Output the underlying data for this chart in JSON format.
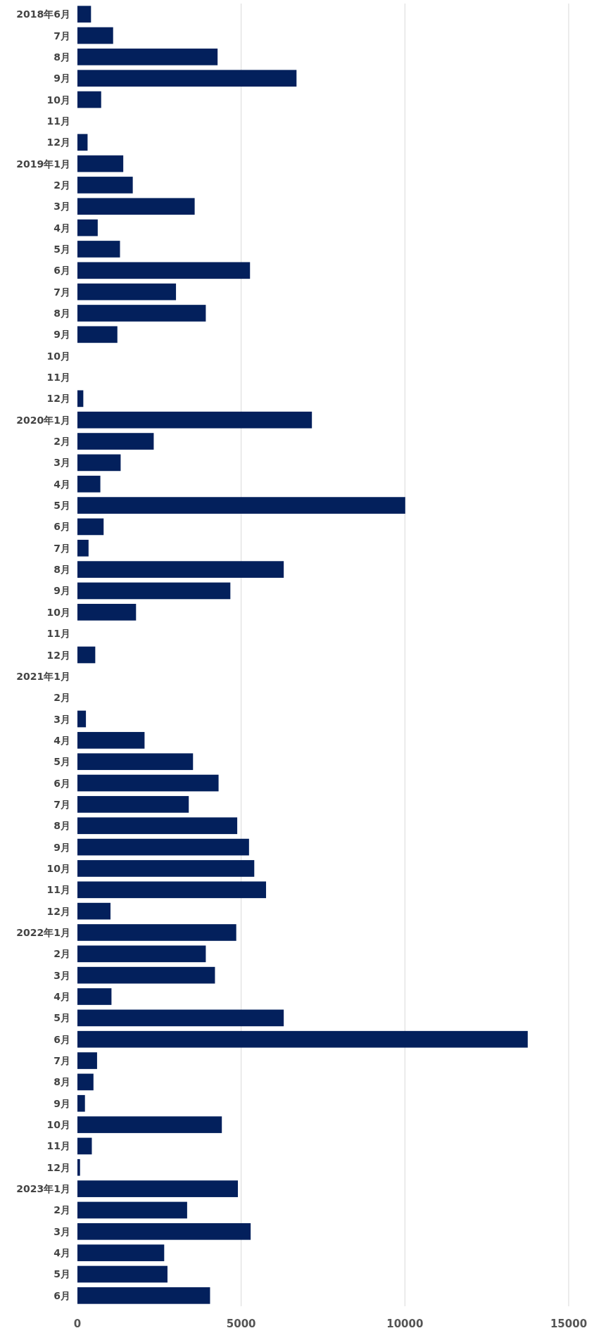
{
  "chart_data": {
    "type": "bar",
    "orientation": "horizontal",
    "color": "#03205c",
    "grid": "x",
    "categories": [
      "2018年6月",
      "7月",
      "8月",
      "9月",
      "10月",
      "11月",
      "12月",
      "2019年1月",
      "2月",
      "3月",
      "4月",
      "5月",
      "6月",
      "7月",
      "8月",
      "9月",
      "10月",
      "11月",
      "12月",
      "2020年1月",
      "2月",
      "3月",
      "4月",
      "5月",
      "6月",
      "7月",
      "8月",
      "9月",
      "10月",
      "11月",
      "12月",
      "2021年1月",
      "2月",
      "3月",
      "4月",
      "5月",
      "6月",
      "7月",
      "8月",
      "9月",
      "10月",
      "11月",
      "12月",
      "2022年1月",
      "2月",
      "3月",
      "4月",
      "5月",
      "6月",
      "7月",
      "8月",
      "9月",
      "10月",
      "11月",
      "12月",
      "2023年1月",
      "2月",
      "3月",
      "4月",
      "5月",
      "6月"
    ],
    "values": [
      415,
      1090,
      4280,
      6690,
      725,
      null,
      310,
      1400,
      1690,
      3580,
      620,
      1300,
      5270,
      3010,
      3920,
      1220,
      null,
      null,
      180,
      7160,
      2330,
      1320,
      700,
      10010,
      800,
      340,
      6300,
      4670,
      1790,
      null,
      545,
      null,
      null,
      260,
      2050,
      3530,
      4310,
      3400,
      4880,
      5240,
      5400,
      5760,
      1010,
      4850,
      3920,
      4200,
      1040,
      6300,
      13750,
      600,
      490,
      230,
      4410,
      440,
      80,
      4900,
      3350,
      5290,
      2650,
      2750,
      4050
    ],
    "xlim": [
      0,
      15000
    ],
    "xticks": [
      0,
      5000,
      10000,
      15000
    ]
  }
}
